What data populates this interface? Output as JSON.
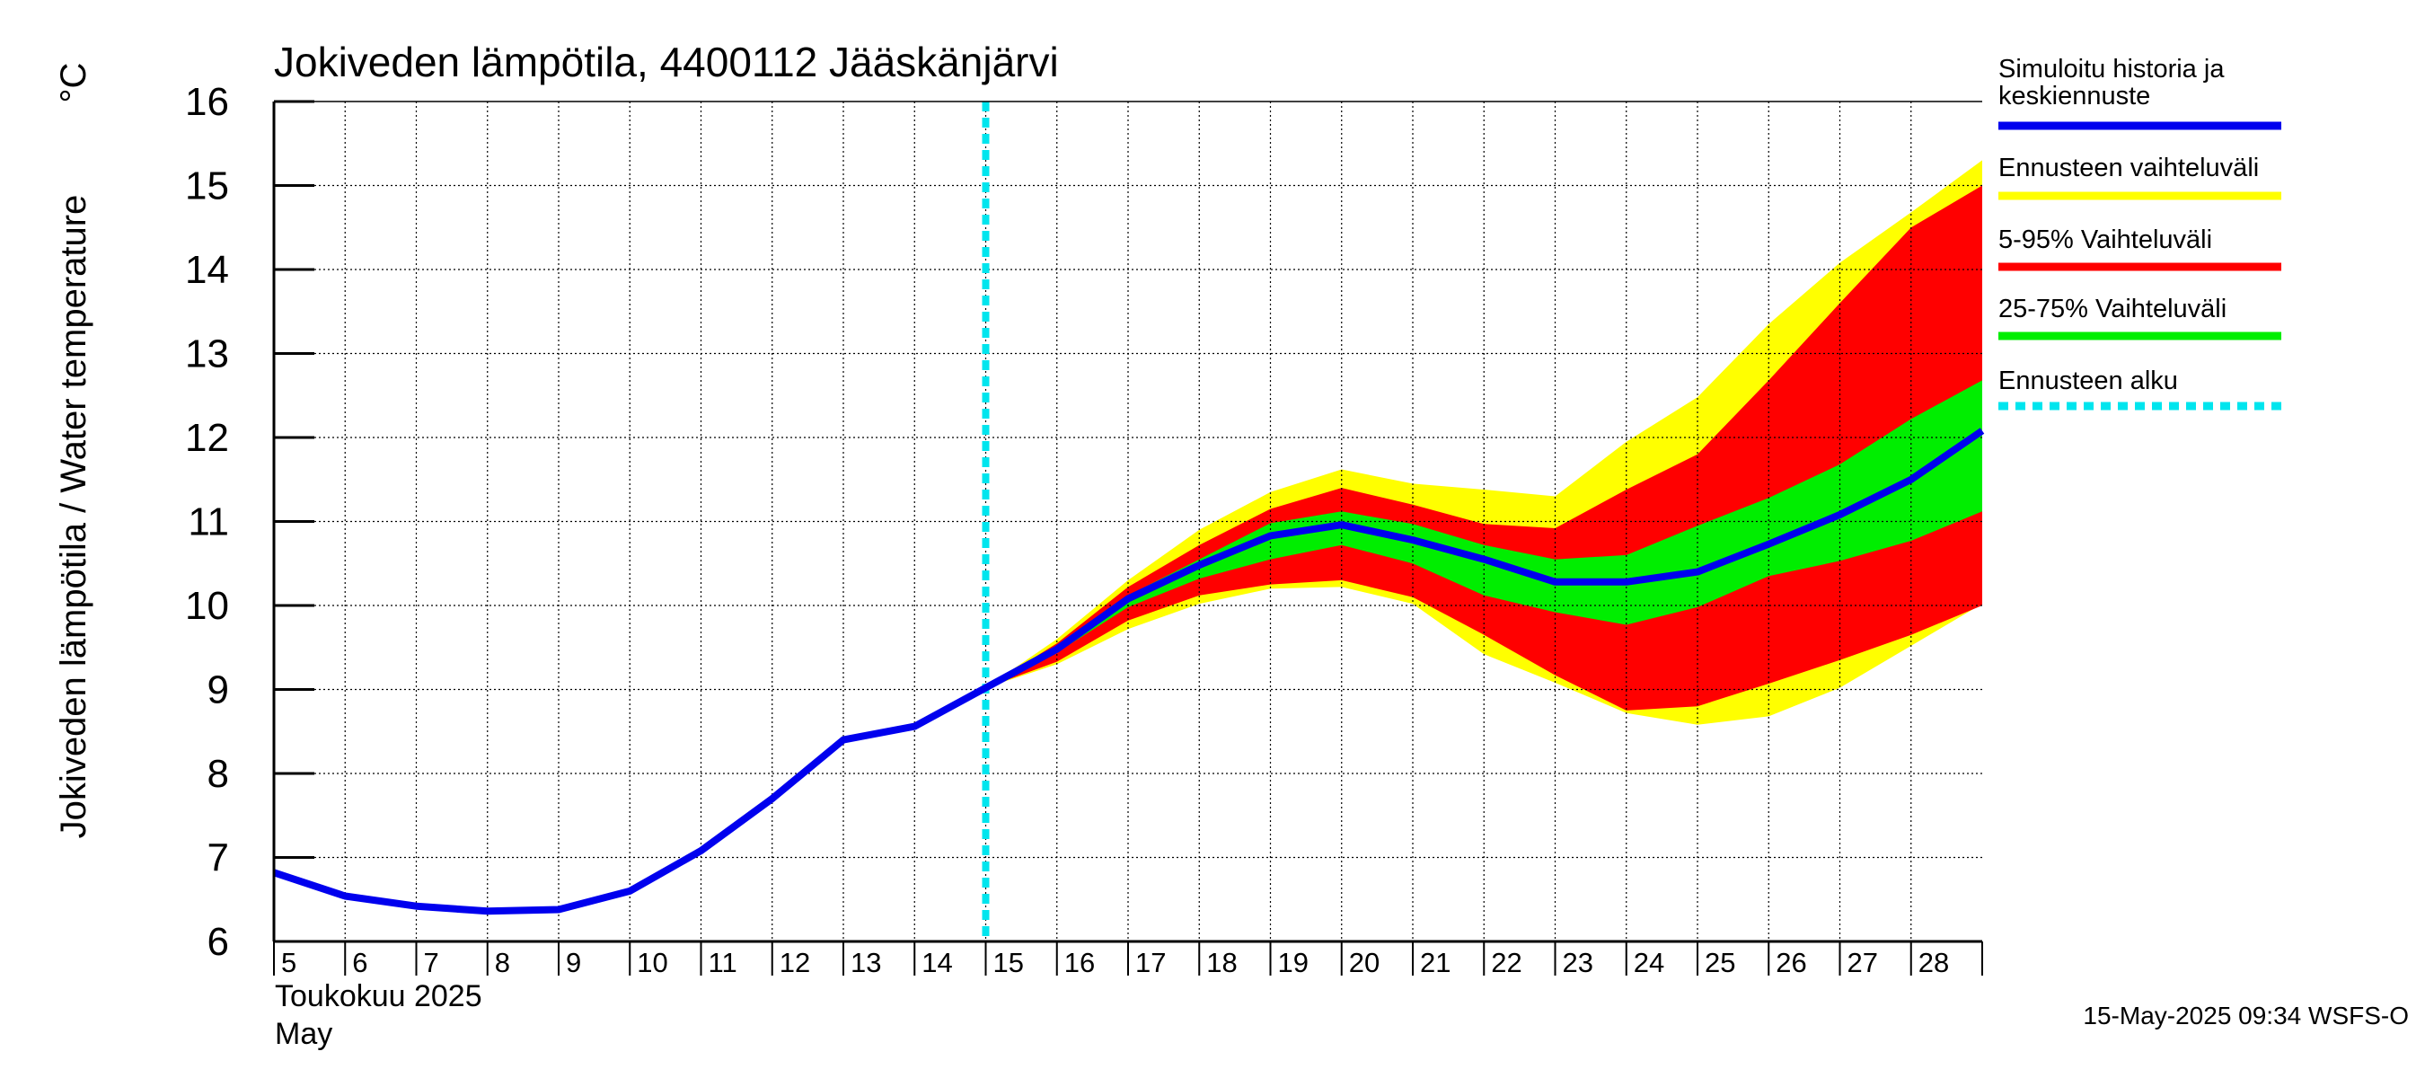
{
  "chart_data": {
    "type": "area",
    "title": "Jokiveden lämpötila, 4400112 Jääskänjärvi",
    "ylabel": "Jokiveden lämpötila / Water temperature",
    "yunit": "°C",
    "ylim": [
      6,
      16
    ],
    "yticks": [
      6,
      7,
      8,
      9,
      10,
      11,
      12,
      13,
      14,
      15,
      16
    ],
    "x_range": [
      "2025-05-05",
      "2025-05-29"
    ],
    "xtick_labels": [
      "5",
      "6",
      "7",
      "8",
      "9",
      "10",
      "11",
      "12",
      "13",
      "14",
      "15",
      "16",
      "17",
      "18",
      "19",
      "20",
      "21",
      "22",
      "23",
      "24",
      "25",
      "26",
      "27",
      "28"
    ],
    "month_label_fi": "Toukokuu  2025",
    "month_label_en": "May",
    "grid": true,
    "legend_position": "right",
    "forecast_start": "2025-05-15T00:00",
    "series": [
      {
        "name": "Simuloitu historia ja keskiennuste",
        "role": "median",
        "color": "#0000ee",
        "x": [
          "2025-05-05",
          "2025-05-06",
          "2025-05-07",
          "2025-05-08",
          "2025-05-09",
          "2025-05-10",
          "2025-05-11",
          "2025-05-12",
          "2025-05-13",
          "2025-05-14",
          "2025-05-15",
          "2025-05-16",
          "2025-05-17",
          "2025-05-18",
          "2025-05-19",
          "2025-05-20",
          "2025-05-21",
          "2025-05-22",
          "2025-05-23",
          "2025-05-24",
          "2025-05-25",
          "2025-05-26",
          "2025-05-27",
          "2025-05-28",
          "2025-05-29"
        ],
        "y": [
          6.82,
          6.54,
          6.42,
          6.36,
          6.38,
          6.6,
          7.08,
          7.7,
          8.4,
          8.56,
          9.02,
          9.48,
          10.08,
          10.48,
          10.83,
          10.96,
          10.78,
          10.55,
          10.28,
          10.28,
          10.4,
          10.73,
          11.08,
          11.5,
          12.08
        ]
      },
      {
        "name": "Ennusteen vaihteluväli",
        "role": "band",
        "color": "#ffff00",
        "x": [
          "2025-05-15",
          "2025-05-16",
          "2025-05-17",
          "2025-05-18",
          "2025-05-19",
          "2025-05-20",
          "2025-05-21",
          "2025-05-22",
          "2025-05-23",
          "2025-05-24",
          "2025-05-25",
          "2025-05-26",
          "2025-05-27",
          "2025-05-28",
          "2025-05-29"
        ],
        "upper": [
          9.02,
          9.6,
          10.3,
          10.9,
          11.35,
          11.62,
          11.45,
          11.38,
          11.3,
          11.95,
          12.48,
          13.35,
          14.08,
          14.68,
          15.3
        ],
        "lower": [
          9.02,
          9.3,
          9.72,
          10.02,
          10.2,
          10.22,
          10.02,
          9.42,
          9.08,
          8.72,
          8.58,
          8.68,
          9.02,
          9.52,
          10.02
        ]
      },
      {
        "name": "5-95% Vaihteluväli",
        "role": "band",
        "color": "#ff0000",
        "x": [
          "2025-05-15",
          "2025-05-16",
          "2025-05-17",
          "2025-05-18",
          "2025-05-19",
          "2025-05-20",
          "2025-05-21",
          "2025-05-22",
          "2025-05-23",
          "2025-05-24",
          "2025-05-25",
          "2025-05-26",
          "2025-05-27",
          "2025-05-28",
          "2025-05-29"
        ],
        "upper": [
          9.02,
          9.55,
          10.22,
          10.72,
          11.15,
          11.4,
          11.2,
          10.97,
          10.92,
          11.38,
          11.8,
          12.68,
          13.6,
          14.5,
          15.0
        ],
        "lower": [
          9.02,
          9.33,
          9.82,
          10.12,
          10.25,
          10.3,
          10.1,
          9.65,
          9.17,
          8.75,
          8.8,
          9.07,
          9.35,
          9.65,
          10.0
        ]
      },
      {
        "name": "25-75% Vaihteluväli",
        "role": "band",
        "color": "#00ee00",
        "x": [
          "2025-05-15",
          "2025-05-16",
          "2025-05-17",
          "2025-05-18",
          "2025-05-19",
          "2025-05-20",
          "2025-05-21",
          "2025-05-22",
          "2025-05-23",
          "2025-05-24",
          "2025-05-25",
          "2025-05-26",
          "2025-05-27",
          "2025-05-28",
          "2025-05-29"
        ],
        "upper": [
          9.02,
          9.5,
          10.12,
          10.55,
          10.98,
          11.12,
          10.97,
          10.72,
          10.55,
          10.6,
          10.95,
          11.28,
          11.68,
          12.22,
          12.68
        ],
        "lower": [
          9.02,
          9.44,
          9.98,
          10.32,
          10.55,
          10.72,
          10.5,
          10.12,
          9.92,
          9.77,
          9.98,
          10.35,
          10.53,
          10.77,
          11.12
        ]
      },
      {
        "name": "Ennusteen alku",
        "role": "marker",
        "color": "#00e5ee"
      }
    ],
    "legend_order": [
      0,
      1,
      2,
      3,
      4
    ],
    "colors": {
      "median": "#0000ee",
      "full_range": "#ffff00",
      "p5_95": "#ff0000",
      "p25_75": "#00ee00",
      "forecast_start": "#00e5ee",
      "grid": "#000000"
    }
  },
  "legend": {
    "label_lines": [
      [
        "Simuloitu historia ja",
        "keskiennuste"
      ],
      [
        "Ennusteen vaihteluväli"
      ],
      [
        "5-95% Vaihteluväli"
      ],
      [
        "25-75% Vaihteluväli"
      ],
      [
        "Ennusteen alku"
      ]
    ]
  },
  "footer": {
    "timestamp": "15-May-2025 09:34 WSFS-O"
  }
}
